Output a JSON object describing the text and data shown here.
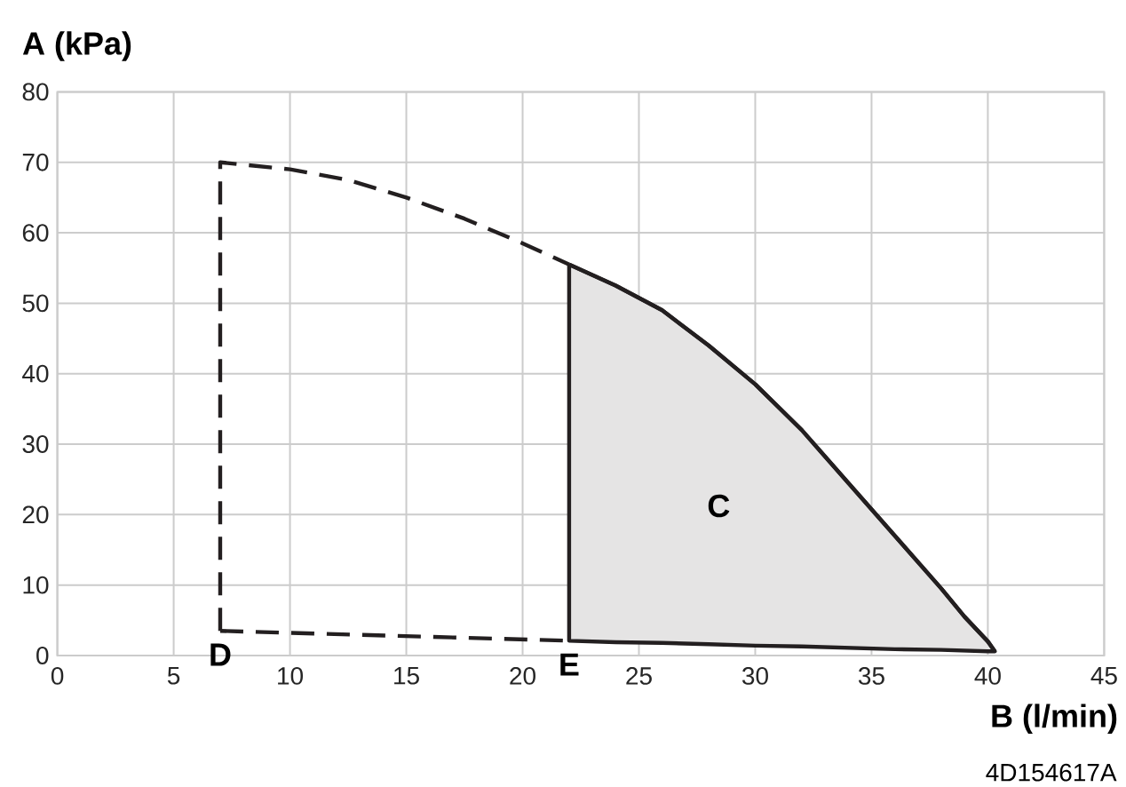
{
  "chart_data": {
    "type": "line",
    "xlabel": "B (l/min)",
    "ylabel": "A (kPa)",
    "xlim": [
      0,
      45
    ],
    "ylim": [
      0,
      80
    ],
    "xticks": [
      0,
      5,
      10,
      15,
      20,
      25,
      30,
      35,
      40,
      45
    ],
    "yticks": [
      0,
      10,
      20,
      30,
      40,
      50,
      60,
      70,
      80
    ],
    "grid": true,
    "series": [
      {
        "color": "#231f20",
        "line_style": "solid",
        "x": [
          22,
          24,
          26,
          28,
          30,
          32,
          34,
          36,
          38,
          39,
          40,
          40.3
        ],
        "values": [
          55.5,
          52.5,
          49,
          44,
          38.5,
          32,
          24.5,
          17,
          9.5,
          5.5,
          2,
          0.6
        ],
        "lower": [
          2.1,
          1.9,
          1.8,
          1.6,
          1.4,
          1.3,
          1.1,
          0.9,
          0.8,
          0.7,
          0.6,
          0.6
        ],
        "upper": [
          55.5,
          52.5,
          49,
          44,
          38.5,
          32,
          24.5,
          17,
          9.5,
          5.5,
          2,
          0.6
        ]
      },
      {
        "color": "#231f20",
        "line_style": "dashed",
        "x": [
          7,
          7,
          10,
          12.5,
          15,
          17.5,
          20,
          22
        ],
        "values": [
          3.5,
          70,
          69,
          67.5,
          65,
          62,
          58.5,
          55.5
        ]
      },
      {
        "color": "#231f20",
        "line_style": "dashed",
        "x": [
          7,
          22
        ],
        "values": [
          3.5,
          2.1
        ]
      }
    ],
    "annotations": [
      {
        "text": "D",
        "x": 7,
        "y": 3.5
      },
      {
        "text": "E",
        "x": 22,
        "y": 2.1
      },
      "C",
      "4D154617A"
    ]
  }
}
